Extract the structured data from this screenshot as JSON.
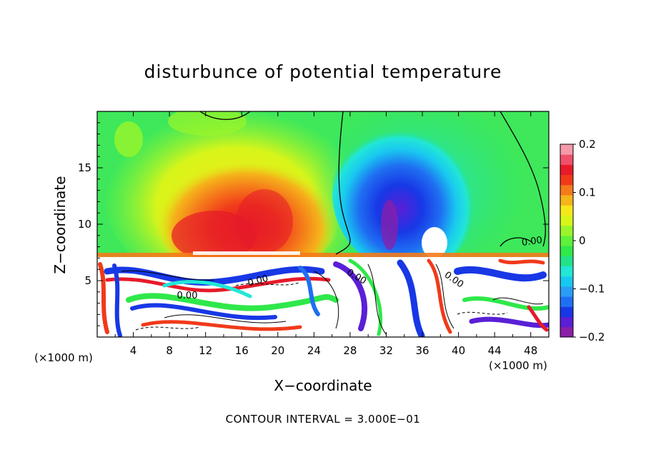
{
  "chart_data": {
    "type": "heatmap",
    "title": "disturbunce of potential temperature",
    "xlabel": "X−coordinate",
    "ylabel": "Z−coordinate",
    "x_unit": "(×1000 m)",
    "x_ticks": [
      "4",
      "8",
      "12",
      "16",
      "20",
      "24",
      "28",
      "32",
      "36",
      "40",
      "44",
      "48"
    ],
    "y_ticks": [
      "5",
      "10",
      "15"
    ],
    "xlim": [
      0,
      50
    ],
    "ylim": [
      0,
      20
    ],
    "colorbar": {
      "min": -0.2,
      "max": 0.2,
      "tick_labels": [
        "0.2",
        "0.1",
        "0",
        "−0.1",
        "−0.2"
      ],
      "colors": [
        "#8b1fa8",
        "#5a1fd6",
        "#1838e6",
        "#1f6ff2",
        "#2a9df5",
        "#19c8f0",
        "#22e6d6",
        "#22e28a",
        "#2fe84a",
        "#5ef23a",
        "#9af52a",
        "#d8f51a",
        "#f5e81a",
        "#f5b41a",
        "#f57a1a",
        "#f03a1a",
        "#e61a2a",
        "#f0506a",
        "#f59aa8"
      ]
    },
    "contour_labels": [
      "0.00",
      "0.00",
      "0.00",
      "0.00",
      "0.00"
    ],
    "footer": "CONTOUR INTERVAL = 3.000E−01"
  }
}
